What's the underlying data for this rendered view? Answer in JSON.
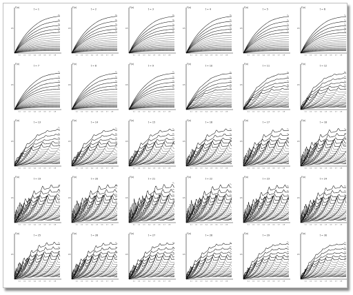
{
  "figure": {
    "ylabel": "F(x)",
    "curve_labels": [
      "T₁",
      "T₂",
      "T₃",
      "T₄",
      "T₅"
    ],
    "x_ticks": [
      "0.1",
      "0.2",
      "0.3",
      "0.4",
      "0.5",
      "0.6",
      "0.7",
      "0.8"
    ],
    "y_tick": "0.5"
  },
  "chart_data": {
    "type": "line",
    "layout": "small multiples, 5 rows x 6 columns",
    "panels": [
      {
        "label": "t = 1"
      },
      {
        "label": "t = 2"
      },
      {
        "label": "t = 3"
      },
      {
        "label": "t = 4"
      },
      {
        "label": "t = 5"
      },
      {
        "label": "t = 6"
      },
      {
        "label": "t = 7"
      },
      {
        "label": "t = 8"
      },
      {
        "label": "t = 9"
      },
      {
        "label": "t = 10"
      },
      {
        "label": "t = 11"
      },
      {
        "label": "t = 12"
      },
      {
        "label": "t = 13"
      },
      {
        "label": "t = 14"
      },
      {
        "label": "t = 15"
      },
      {
        "label": "t = 16"
      },
      {
        "label": "t = 17"
      },
      {
        "label": "t = 18"
      },
      {
        "label": "t = 19"
      },
      {
        "label": "t = 20"
      },
      {
        "label": "t = 21"
      },
      {
        "label": "t = 22"
      },
      {
        "label": "t = 23"
      },
      {
        "label": "t = 24"
      },
      {
        "label": "t = 25"
      },
      {
        "label": "t = 26"
      },
      {
        "label": "t = 27"
      },
      {
        "label": "t = 28"
      },
      {
        "label": "t = 29"
      },
      {
        "label": "t = 30"
      }
    ],
    "curves_per_panel": 20,
    "ylabel": "F(x)",
    "xlim": [
      0,
      0.9
    ],
    "ylim": [
      0,
      1
    ],
    "colors": {
      "curve": "#000000",
      "axis": "#222222"
    }
  }
}
